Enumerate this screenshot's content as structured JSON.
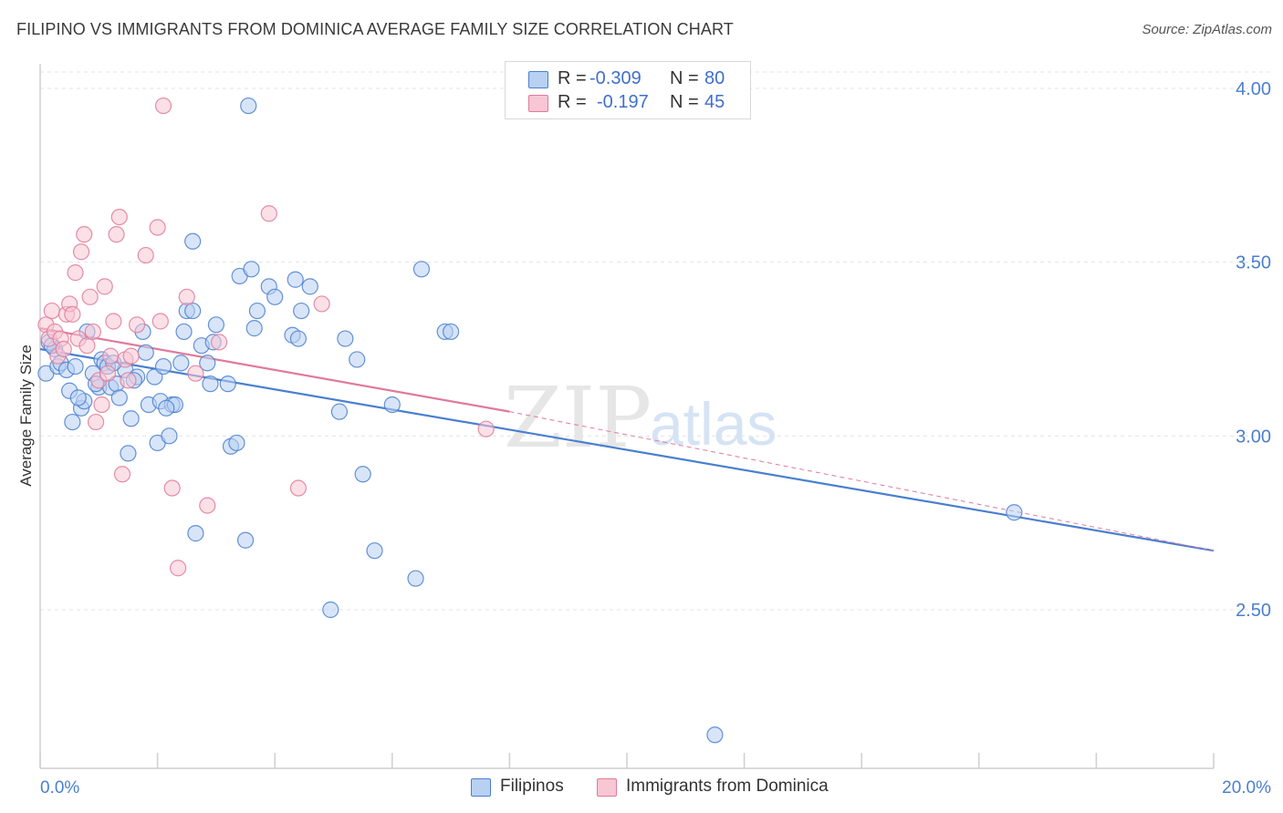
{
  "title": "FILIPINO VS IMMIGRANTS FROM DOMINICA AVERAGE FAMILY SIZE CORRELATION CHART",
  "source": "Source: ZipAtlas.com",
  "watermark": {
    "zip": "ZIP",
    "atlas": "atlas"
  },
  "legend_top": {
    "rows": [
      {
        "r_label": "R =",
        "r_value": "-0.309",
        "n_label": "N =",
        "n_value": "80",
        "color": "#4a7fd0",
        "fill": "#b8d0f2"
      },
      {
        "r_label": "R =",
        "r_value": "-0.197",
        "n_label": "N =",
        "n_value": "45",
        "color": "#e07a9a",
        "fill": "#f8c6d4"
      }
    ]
  },
  "legend_bottom": {
    "items": [
      {
        "label": "Filipinos",
        "color": "#4a7fd0",
        "fill": "#b8d0f2"
      },
      {
        "label": "Immigrants from Dominica",
        "color": "#e07a9a",
        "fill": "#f8c6d4"
      }
    ]
  },
  "chart_data": {
    "type": "scatter",
    "title": "FILIPINO VS IMMIGRANTS FROM DOMINICA AVERAGE FAMILY SIZE CORRELATION CHART",
    "xlabel": "",
    "ylabel": "Average Family Size",
    "xlim": [
      0,
      20
    ],
    "ylim": [
      2.1,
      4.15
    ],
    "x_tick_labels": [
      "0.0%",
      "20.0%"
    ],
    "y_ticks": [
      2.5,
      3.0,
      3.5,
      4.0
    ],
    "y_tick_labels": [
      "2.50",
      "3.00",
      "3.50",
      "4.00"
    ],
    "grid": true,
    "legend_position": "top-center",
    "series": [
      {
        "name": "Filipinos",
        "color": "#4a7fd0",
        "fill": "#b8d0f2",
        "trend": {
          "x": [
            0,
            20
          ],
          "y": [
            3.25,
            2.67
          ],
          "dashed_extension": false
        },
        "points": [
          [
            0.1,
            3.18
          ],
          [
            0.15,
            3.27
          ],
          [
            0.25,
            3.25
          ],
          [
            0.3,
            3.2
          ],
          [
            0.35,
            3.21
          ],
          [
            0.45,
            3.19
          ],
          [
            0.5,
            3.13
          ],
          [
            0.55,
            3.04
          ],
          [
            0.6,
            3.2
          ],
          [
            0.7,
            3.08
          ],
          [
            0.75,
            3.1
          ],
          [
            0.8,
            3.3
          ],
          [
            0.9,
            3.18
          ],
          [
            1.0,
            3.14
          ],
          [
            1.05,
            3.22
          ],
          [
            1.1,
            3.21
          ],
          [
            1.15,
            3.2
          ],
          [
            1.2,
            3.14
          ],
          [
            1.3,
            3.15
          ],
          [
            1.35,
            3.11
          ],
          [
            1.45,
            3.19
          ],
          [
            1.5,
            2.95
          ],
          [
            1.55,
            3.05
          ],
          [
            1.65,
            3.17
          ],
          [
            1.75,
            3.3
          ],
          [
            1.8,
            3.24
          ],
          [
            1.85,
            3.09
          ],
          [
            1.95,
            3.17
          ],
          [
            2.0,
            2.98
          ],
          [
            2.05,
            3.1
          ],
          [
            2.1,
            3.2
          ],
          [
            2.2,
            3.0
          ],
          [
            2.25,
            3.09
          ],
          [
            2.3,
            3.09
          ],
          [
            2.4,
            3.21
          ],
          [
            2.45,
            3.3
          ],
          [
            2.5,
            3.36
          ],
          [
            2.6,
            3.36
          ],
          [
            2.6,
            3.56
          ],
          [
            2.65,
            2.72
          ],
          [
            2.75,
            3.26
          ],
          [
            2.85,
            3.21
          ],
          [
            2.9,
            3.15
          ],
          [
            2.95,
            3.27
          ],
          [
            3.0,
            3.32
          ],
          [
            3.2,
            3.15
          ],
          [
            3.25,
            2.97
          ],
          [
            3.35,
            2.98
          ],
          [
            3.4,
            3.46
          ],
          [
            3.5,
            2.7
          ],
          [
            3.55,
            3.95
          ],
          [
            3.6,
            3.48
          ],
          [
            3.65,
            3.31
          ],
          [
            3.7,
            3.36
          ],
          [
            3.9,
            3.43
          ],
          [
            4.0,
            3.4
          ],
          [
            4.3,
            3.29
          ],
          [
            4.4,
            3.28
          ],
          [
            4.35,
            3.45
          ],
          [
            4.45,
            3.36
          ],
          [
            4.6,
            3.43
          ],
          [
            4.95,
            2.5
          ],
          [
            5.1,
            3.07
          ],
          [
            5.2,
            3.28
          ],
          [
            5.4,
            3.22
          ],
          [
            5.5,
            2.89
          ],
          [
            5.7,
            2.67
          ],
          [
            6.0,
            3.09
          ],
          [
            6.4,
            2.59
          ],
          [
            6.5,
            3.48
          ],
          [
            6.9,
            3.3
          ],
          [
            7.0,
            3.3
          ],
          [
            11.5,
            2.14
          ],
          [
            16.6,
            2.78
          ],
          [
            0.2,
            3.26
          ],
          [
            0.95,
            3.15
          ],
          [
            1.25,
            3.21
          ],
          [
            2.15,
            3.08
          ],
          [
            1.6,
            3.16
          ],
          [
            0.65,
            3.11
          ]
        ]
      },
      {
        "name": "Immigrants from Dominica",
        "color": "#e07a9a",
        "fill": "#f8c6d4",
        "trend": {
          "x": [
            0,
            8.0
          ],
          "y": [
            3.31,
            3.07
          ],
          "dashed_extension_to": [
            20,
            2.67
          ]
        },
        "points": [
          [
            0.1,
            3.32
          ],
          [
            0.15,
            3.28
          ],
          [
            0.2,
            3.36
          ],
          [
            0.25,
            3.3
          ],
          [
            0.3,
            3.23
          ],
          [
            0.35,
            3.28
          ],
          [
            0.4,
            3.25
          ],
          [
            0.45,
            3.35
          ],
          [
            0.5,
            3.38
          ],
          [
            0.55,
            3.35
          ],
          [
            0.6,
            3.47
          ],
          [
            0.65,
            3.28
          ],
          [
            0.7,
            3.53
          ],
          [
            0.75,
            3.58
          ],
          [
            0.8,
            3.26
          ],
          [
            0.85,
            3.4
          ],
          [
            0.9,
            3.3
          ],
          [
            0.95,
            3.04
          ],
          [
            1.0,
            3.16
          ],
          [
            1.05,
            3.09
          ],
          [
            1.1,
            3.43
          ],
          [
            1.15,
            3.18
          ],
          [
            1.2,
            3.23
          ],
          [
            1.25,
            3.33
          ],
          [
            1.3,
            3.58
          ],
          [
            1.35,
            3.63
          ],
          [
            1.45,
            3.22
          ],
          [
            1.5,
            3.16
          ],
          [
            1.55,
            3.23
          ],
          [
            1.65,
            3.32
          ],
          [
            1.8,
            3.52
          ],
          [
            2.0,
            3.6
          ],
          [
            2.05,
            3.33
          ],
          [
            2.1,
            3.95
          ],
          [
            2.25,
            2.85
          ],
          [
            2.35,
            2.62
          ],
          [
            2.5,
            3.4
          ],
          [
            2.65,
            3.18
          ],
          [
            2.85,
            2.8
          ],
          [
            3.05,
            3.27
          ],
          [
            3.9,
            3.64
          ],
          [
            4.4,
            2.85
          ],
          [
            4.8,
            3.38
          ],
          [
            7.6,
            3.02
          ],
          [
            1.4,
            2.89
          ]
        ]
      }
    ]
  }
}
